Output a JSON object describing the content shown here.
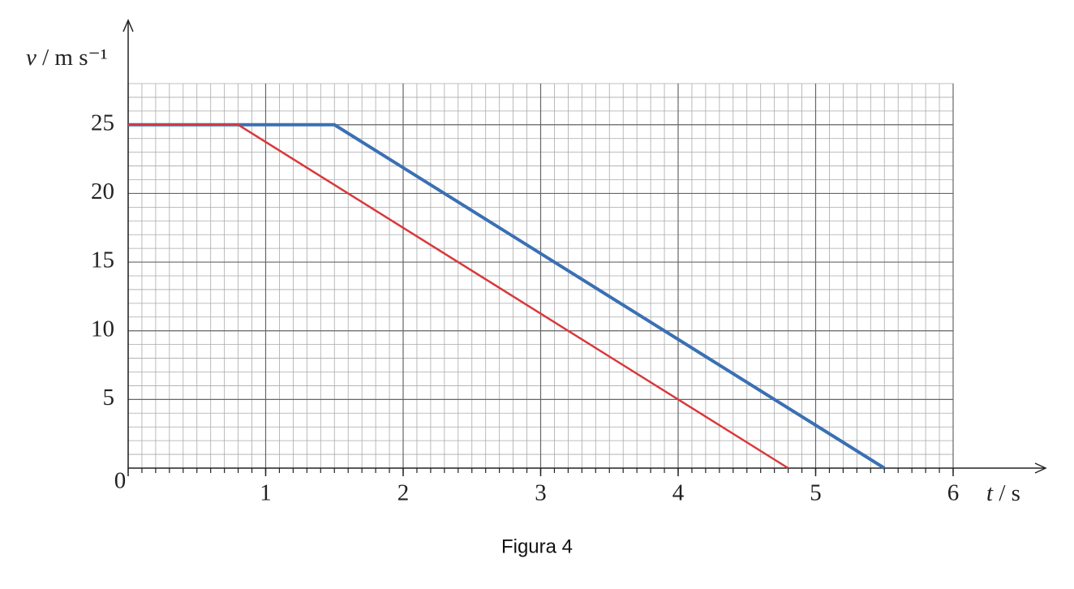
{
  "chart_data": {
    "type": "line",
    "caption": "Figura 4",
    "x_label": {
      "symbol": "t",
      "unit": " / s"
    },
    "y_label": {
      "symbol": "v",
      "unit": " / m s⁻¹"
    },
    "xlim": [
      0,
      6
    ],
    "xticks": [
      0,
      1,
      2,
      3,
      4,
      5,
      6
    ],
    "ylim": [
      0,
      28
    ],
    "yticks": [
      5,
      10,
      15,
      20,
      25
    ],
    "grid": true,
    "series": [
      {
        "color": "#3a70b4",
        "x": [
          0,
          1.5,
          5.5
        ],
        "values": [
          25,
          25,
          0
        ]
      },
      {
        "color": "#d9393a",
        "x": [
          0,
          0.8,
          4.8
        ],
        "values": [
          25,
          25,
          0
        ]
      }
    ]
  }
}
